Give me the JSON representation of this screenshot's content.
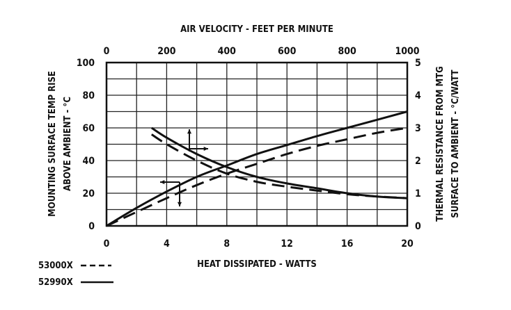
{
  "chart_data": {
    "type": "line",
    "title": "",
    "top_axis": {
      "label": "AIR VELOCITY - FEET PER MINUTE",
      "ticks": [
        "0",
        "200",
        "400",
        "600",
        "800",
        "1000"
      ],
      "range": [
        0,
        1000
      ]
    },
    "bottom_axis": {
      "label": "HEAT DISSIPATED - WATTS",
      "ticks": [
        "0",
        "4",
        "8",
        "12",
        "16",
        "20"
      ],
      "range": [
        0,
        20
      ]
    },
    "left_axis": {
      "label_line1": "MOUNTING SURFACE TEMP RISE",
      "label_line2": "ABOVE AMBIENT - °C",
      "ticks": [
        "0",
        "20",
        "40",
        "60",
        "80",
        "100"
      ],
      "range": [
        0,
        100
      ]
    },
    "right_axis": {
      "label_line1": "THERMAL RESISTANCE FROM MTG",
      "label_line2": "SURFACE TO AMBIENT - °C/WATT",
      "ticks": [
        "0",
        "1",
        "2",
        "3",
        "4",
        "5"
      ],
      "range": [
        0,
        5
      ]
    },
    "grid": true,
    "legend": [
      {
        "name": "53000X",
        "style": "dashed"
      },
      {
        "name": "52990X",
        "style": "solid"
      }
    ],
    "series": [
      {
        "name": "52990X",
        "style": "solid",
        "kind": "temp_rise_vs_heat",
        "axes": "bottom-left",
        "x": [
          0,
          2,
          4,
          6,
          8,
          10,
          12,
          14,
          16,
          18,
          20
        ],
        "y": [
          0,
          11,
          21,
          30,
          37,
          44,
          49.5,
          55,
          60,
          65,
          70
        ]
      },
      {
        "name": "53000X",
        "style": "dashed",
        "kind": "temp_rise_vs_heat",
        "axes": "bottom-left",
        "x": [
          0,
          2,
          4,
          6,
          8,
          10,
          12,
          14,
          16,
          18,
          20
        ],
        "y": [
          0,
          8.5,
          17,
          25,
          32,
          38,
          44,
          49,
          53,
          57,
          60
        ]
      },
      {
        "name": "52990X",
        "style": "solid",
        "kind": "thermal_resistance_vs_velocity",
        "axes": "top-right",
        "x": [
          150,
          200,
          300,
          400,
          500,
          600,
          700,
          800,
          900,
          1000
        ],
        "y": [
          3.0,
          2.7,
          2.2,
          1.8,
          1.5,
          1.3,
          1.15,
          1.0,
          0.9,
          0.85
        ]
      },
      {
        "name": "53000X",
        "style": "dashed",
        "kind": "thermal_resistance_vs_velocity",
        "axes": "top-right",
        "x": [
          150,
          200,
          300,
          400,
          500,
          600,
          700,
          800,
          900,
          1000
        ],
        "y": [
          2.8,
          2.5,
          2.0,
          1.6,
          1.35,
          1.2,
          1.08,
          0.97,
          0.9,
          0.85
        ]
      }
    ]
  }
}
